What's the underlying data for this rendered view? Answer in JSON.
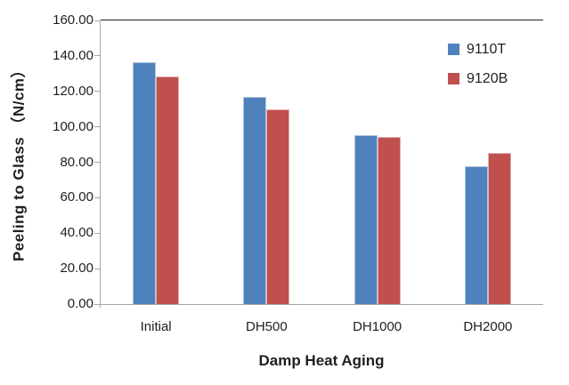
{
  "chart_data": {
    "type": "bar",
    "title": "",
    "xlabel": "Damp Heat Aging",
    "ylabel": "Peeling to Glass （N/cm）",
    "categories": [
      "Initial",
      "DH500",
      "DH1000",
      "DH2000"
    ],
    "series": [
      {
        "name": "9110T",
        "color": "#4F81BD",
        "values": [
          136.5,
          117.0,
          95.5,
          77.5
        ]
      },
      {
        "name": "9120B",
        "color": "#C0504D",
        "values": [
          128.5,
          110.0,
          94.5,
          85.5
        ]
      }
    ],
    "ylim": [
      0,
      160
    ],
    "ytick_step": 20,
    "ytick_labels": [
      "0.00",
      "20.00",
      "40.00",
      "60.00",
      "80.00",
      "100.00",
      "120.00",
      "140.00",
      "160.00"
    ],
    "grid": false,
    "legend_position": "top-right-inside",
    "axis_color": "#A6A6A6",
    "plot_border_top_color": "#262626",
    "plot_border_right_color": "#7F7F7F"
  }
}
